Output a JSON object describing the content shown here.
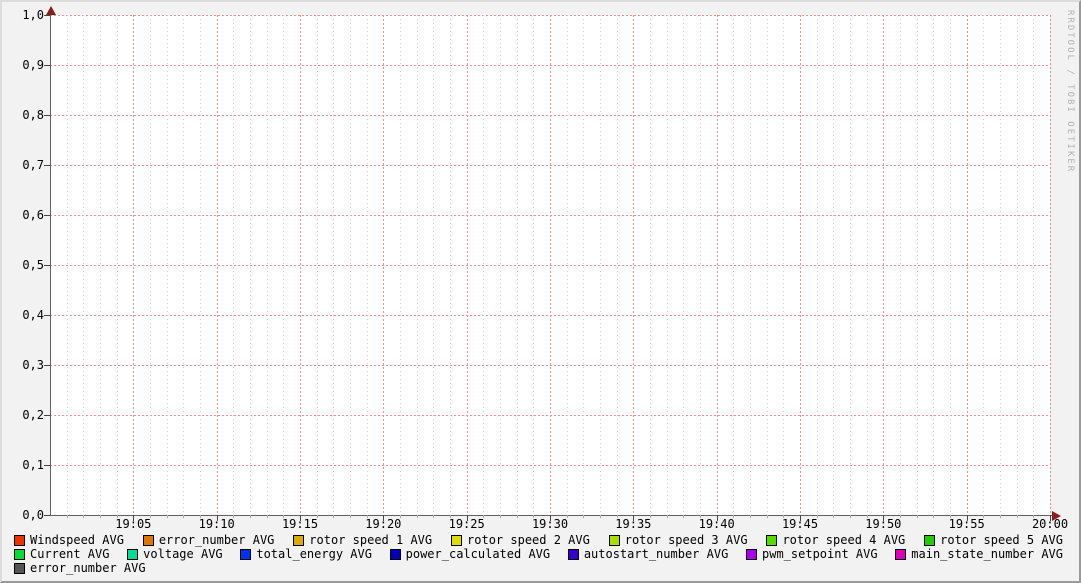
{
  "watermark": "RRDTOOL / TOBI OETIKER",
  "palette": {
    "background": "#f2f2f2",
    "plot_background": "#ffffff",
    "major_grid": "#ef9090",
    "minor_grid": "#cdcdcd",
    "axis": "#606060",
    "arrow": "#8c1c1c",
    "text": "#000000",
    "watermark_color": "#b2b2b2"
  },
  "chart_data": {
    "type": "line",
    "title": "",
    "xlabel": "",
    "ylabel": "",
    "grid": true,
    "legend_position": "bottom",
    "x_axis": {
      "start": "19:00",
      "end": "20:00",
      "minor_tick_minutes": 1,
      "major_tick_minutes": 5,
      "tick_labels": [
        "19:05",
        "19:10",
        "19:15",
        "19:20",
        "19:25",
        "19:30",
        "19:35",
        "19:40",
        "19:45",
        "19:50",
        "19:55",
        "20:00"
      ]
    },
    "y_axis": {
      "min": 0.0,
      "max": 1.0,
      "tick_step": 0.1,
      "tick_labels_top_down": [
        "1,0",
        "0,9",
        "0,8",
        "0,7",
        "0,6",
        "0,5",
        "0,4",
        "0,3",
        "0,2",
        "0,1",
        "0,0"
      ]
    },
    "series": [
      {
        "label": "Windspeed AVG",
        "color": "#ee3300",
        "values": []
      },
      {
        "label": "error_number AVG",
        "color": "#dd7700",
        "values": []
      },
      {
        "label": "rotor speed 1 AVG",
        "color": "#ddaa00",
        "values": []
      },
      {
        "label": "rotor speed 2 AVG",
        "color": "#dddd00",
        "values": []
      },
      {
        "label": "rotor speed 3 AVG",
        "color": "#aadd00",
        "values": []
      },
      {
        "label": "rotor speed 4 AVG",
        "color": "#55dd00",
        "values": []
      },
      {
        "label": "rotor speed 5 AVG",
        "color": "#22cc00",
        "values": []
      },
      {
        "label": "Current AVG",
        "color": "#00dd33",
        "values": []
      },
      {
        "label": "voltage AVG",
        "color": "#00dd99",
        "values": []
      },
      {
        "label": "total_energy AVG",
        "color": "#0033ee",
        "values": []
      },
      {
        "label": "power_calculated AVG",
        "color": "#0000bb",
        "values": []
      },
      {
        "label": "autostart_number AVG",
        "color": "#3300cc",
        "values": []
      },
      {
        "label": "pwm_setpoint AVG",
        "color": "#aa00ee",
        "values": []
      },
      {
        "label": "main_state_number AVG",
        "color": "#dd00bb",
        "values": []
      },
      {
        "label": "error_number AVG",
        "color": "#555555",
        "values": []
      }
    ],
    "legend_rows": [
      [
        0,
        1,
        2,
        3,
        4,
        5,
        6
      ],
      [
        7,
        8,
        9,
        10,
        11,
        12,
        13
      ],
      [
        14
      ]
    ]
  }
}
